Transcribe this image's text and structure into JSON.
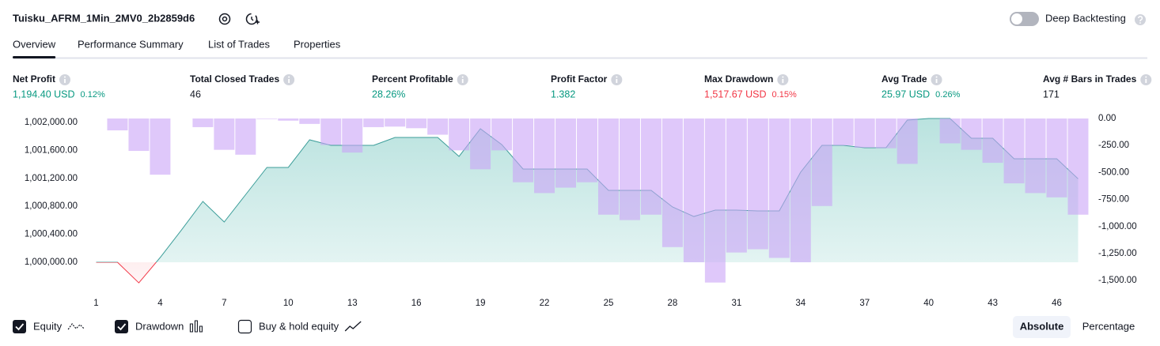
{
  "header": {
    "title": "Tuisku_AFRM_1Min_2MV0_2b2859d6",
    "toggle_label": "Deep Backtesting",
    "toggle_on": false
  },
  "tabs": [
    {
      "label": "Overview",
      "active": true
    },
    {
      "label": "Performance Summary",
      "active": false
    },
    {
      "label": "List of Trades",
      "active": false
    },
    {
      "label": "Properties",
      "active": false
    }
  ],
  "metrics": [
    {
      "label": "Net Profit",
      "value": "1,194.40 USD",
      "percent": "0.12%",
      "tone": "green"
    },
    {
      "label": "Total Closed Trades",
      "value": "46",
      "tone": "plain"
    },
    {
      "label": "Percent Profitable",
      "value": "28.26%",
      "tone": "green"
    },
    {
      "label": "Profit Factor",
      "value": "1.382",
      "tone": "green"
    },
    {
      "label": "Max Drawdown",
      "value": "1,517.67 USD",
      "percent": "0.15%",
      "tone": "red"
    },
    {
      "label": "Avg Trade",
      "value": "25.97 USD",
      "percent": "0.26%",
      "tone": "green"
    },
    {
      "label": "Avg # Bars in Trades",
      "value": "171",
      "tone": "plain"
    }
  ],
  "chart_data": {
    "type": "combo",
    "x": [
      1,
      2,
      3,
      4,
      5,
      6,
      7,
      8,
      9,
      10,
      11,
      12,
      13,
      14,
      15,
      16,
      17,
      18,
      19,
      20,
      21,
      22,
      23,
      24,
      25,
      26,
      27,
      28,
      29,
      30,
      31,
      32,
      33,
      34,
      35,
      36,
      37,
      38,
      39,
      40,
      41,
      42,
      43,
      44,
      45,
      46,
      47
    ],
    "xlim": [
      0.5,
      47.5
    ],
    "xticks": [
      1,
      4,
      7,
      10,
      13,
      16,
      19,
      22,
      25,
      28,
      31,
      34,
      37,
      40,
      43,
      46
    ],
    "ylim": [
      999684,
      1002056
    ],
    "yticks": [
      {
        "value": 1000000,
        "label": "1,000,000.00"
      },
      {
        "value": 1000400,
        "label": "1,000,400.00"
      },
      {
        "value": 1000800,
        "label": "1,000,800.00"
      },
      {
        "value": 1001200,
        "label": "1,001,200.00"
      },
      {
        "value": 1001600,
        "label": "1,001,600.00"
      },
      {
        "value": 1002000,
        "label": "1,002,000.00"
      }
    ],
    "y2lim": [
      -1535,
      0
    ],
    "y2ticks": [
      {
        "value": 0,
        "label": "0.00"
      },
      {
        "value": -250,
        "label": "-250.00"
      },
      {
        "value": -500,
        "label": "-500.00"
      },
      {
        "value": -750,
        "label": "-750.00"
      },
      {
        "value": -1000,
        "label": "-1,000.00"
      },
      {
        "value": -1250,
        "label": "-1,250.00"
      },
      {
        "value": -1500,
        "label": "-1,500.00"
      }
    ],
    "baseline": 1000000,
    "series": [
      {
        "name": "Equity",
        "type": "area",
        "color": "#3d9e9a",
        "negative_color": "#f23645",
        "checked": true,
        "values": [
          1000000,
          1000000,
          999706,
          1000068,
          1000463,
          1000870,
          1000576,
          1000966,
          1001356,
          1001356,
          1001751,
          1001672,
          1001672,
          1001672,
          1001785,
          1001785,
          1001785,
          1001514,
          1001910,
          1001684,
          1001333,
          1001333,
          1001333,
          1001333,
          1001028,
          1001028,
          1001028,
          1000791,
          1000655,
          1000746,
          1000746,
          1000734,
          1000734,
          1001288,
          1001672,
          1001672,
          1001638,
          1001638,
          1002034,
          1002056,
          1002056,
          1001774,
          1001774,
          1001480,
          1001480,
          1001480,
          1001194
        ]
      },
      {
        "name": "Drawdown",
        "type": "bar",
        "axis": "y2",
        "color": "#c9a3f7",
        "checked": true,
        "values": [
          0,
          -110,
          -300,
          -520,
          0,
          -80,
          -290,
          -335,
          -5,
          -20,
          -50,
          -245,
          -315,
          -80,
          -75,
          -90,
          -150,
          -295,
          -470,
          -295,
          -590,
          -690,
          -640,
          -590,
          -890,
          -940,
          -890,
          -1190,
          -1330,
          -1518,
          -1240,
          -1210,
          -1290,
          -1330,
          -810,
          -250,
          -270,
          -275,
          -420,
          0,
          -230,
          -290,
          -410,
          -600,
          -690,
          -730,
          -890
        ]
      }
    ],
    "extra_legend": {
      "name": "Buy & hold equity",
      "checked": false
    },
    "modes": [
      {
        "label": "Absolute",
        "active": true
      },
      {
        "label": "Percentage",
        "active": false
      }
    ]
  }
}
